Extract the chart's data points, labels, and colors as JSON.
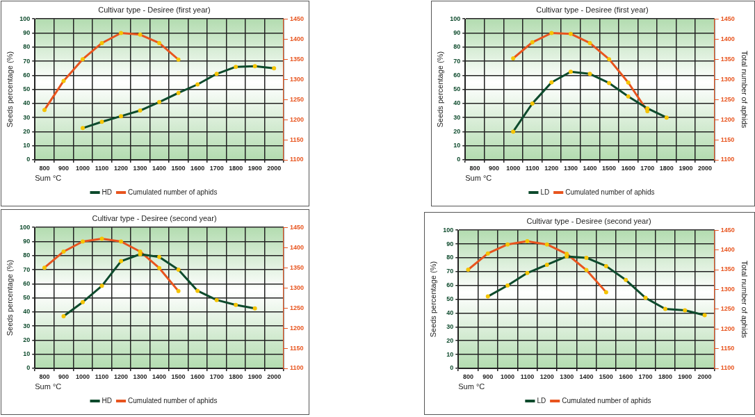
{
  "chart_data": [
    {
      "type": "line",
      "title": "Cultivar type - Desiree (first year)",
      "xlabel": "Sum °C",
      "ylabel": "Seeds percentage (%)",
      "categories": [
        "800",
        "900",
        "1000",
        "1100",
        "1200",
        "1300",
        "1400",
        "1500",
        "1600",
        "1700",
        "1800",
        "1900",
        "2000"
      ],
      "ylim": [
        0,
        100
      ],
      "yticks": [
        0,
        10,
        20,
        30,
        40,
        50,
        60,
        70,
        80,
        90,
        100
      ],
      "y2lim": [
        1100,
        1450
      ],
      "y2ticks": [
        1100,
        1150,
        1200,
        1250,
        1300,
        1350,
        1400,
        1450
      ],
      "grid": true,
      "legend": "bottom",
      "marker": "circle",
      "series": [
        {
          "name": "HD",
          "color": "#0d4a2c",
          "values": [
            null,
            null,
            22.5,
            27,
            31,
            35,
            41,
            47.5,
            53.5,
            61,
            66,
            66.5,
            65
          ]
        },
        {
          "name": "Cumulated number of aphids",
          "color": "#e8541e",
          "axis": "y2",
          "values": [
            1224,
            1296,
            1350,
            1390,
            1415,
            1411,
            1390,
            1349,
            null,
            null,
            null,
            null,
            null
          ]
        }
      ]
    },
    {
      "type": "line",
      "title": "Cultivar type - Desiree (first year)",
      "xlabel": "Sum °C",
      "ylabel": "Seeds percentage (%)",
      "y2label": "Total number of aphids",
      "categories": [
        "800",
        "900",
        "1000",
        "1100",
        "1200",
        "1300",
        "1400",
        "1500",
        "1600",
        "1700",
        "1800",
        "1900",
        "2000"
      ],
      "ylim": [
        0,
        100
      ],
      "yticks": [
        0,
        10,
        20,
        30,
        40,
        50,
        60,
        70,
        80,
        90,
        100
      ],
      "y2lim": [
        1100,
        1450
      ],
      "y2ticks": [
        1100,
        1150,
        1200,
        1250,
        1300,
        1350,
        1400,
        1450
      ],
      "grid": true,
      "legend": "bottom",
      "marker": "circle",
      "series": [
        {
          "name": "LD",
          "color": "#0d4a2c",
          "values": [
            null,
            null,
            20,
            40,
            55,
            62.5,
            61,
            54.5,
            45,
            36.5,
            30,
            null,
            null
          ]
        },
        {
          "name": "Cumulated number of aphids",
          "color": "#e8541e",
          "axis": "y2",
          "values": [
            null,
            null,
            1352,
            1392,
            1415,
            1413,
            1390,
            1350,
            1292,
            1221,
            null,
            null,
            null
          ]
        }
      ]
    },
    {
      "type": "line",
      "title": "Cultivar type - Desiree (second year)",
      "xlabel": "Sum °C",
      "ylabel": "Seeds percentage (%)",
      "categories": [
        "800",
        "900",
        "1000",
        "1100",
        "1200",
        "1300",
        "1400",
        "1500",
        "1600",
        "1700",
        "1800",
        "1900",
        "2000"
      ],
      "ylim": [
        0,
        100
      ],
      "yticks": [
        0,
        10,
        20,
        30,
        40,
        50,
        60,
        70,
        80,
        90,
        100
      ],
      "y2lim": [
        1100,
        1450
      ],
      "y2ticks": [
        1100,
        1150,
        1200,
        1250,
        1300,
        1350,
        1400,
        1450
      ],
      "grid": true,
      "legend": "bottom",
      "marker": "circle",
      "series": [
        {
          "name": "HD",
          "color": "#0d4a2c",
          "values": [
            null,
            37,
            47,
            58.5,
            76,
            81,
            79,
            70,
            55,
            48.5,
            45,
            42.5,
            null
          ]
        },
        {
          "name": "Cumulated number of aphids",
          "color": "#e8541e",
          "axis": "y2",
          "values": [
            1350,
            1390,
            1415,
            1422,
            1415,
            1390,
            1349,
            1292,
            null,
            null,
            null,
            null,
            null
          ]
        }
      ]
    },
    {
      "type": "line",
      "title": "Cultivar type - Desiree (second year)",
      "xlabel": "Sum °C",
      "ylabel": "Seeds percentage (%)",
      "y2label": "Total number of aphids",
      "categories": [
        "800",
        "900",
        "1000",
        "1100",
        "1200",
        "1300",
        "1400",
        "1500",
        "1600",
        "1700",
        "1800",
        "1900",
        "2000"
      ],
      "ylim": [
        0,
        100
      ],
      "yticks": [
        0,
        10,
        20,
        30,
        40,
        50,
        60,
        70,
        80,
        90,
        100
      ],
      "y2lim": [
        1100,
        1450
      ],
      "y2ticks": [
        1100,
        1150,
        1200,
        1250,
        1300,
        1350,
        1400,
        1450
      ],
      "grid": true,
      "legend": "bottom",
      "marker": "circle",
      "series": [
        {
          "name": "LD",
          "color": "#0d4a2c",
          "values": [
            null,
            52,
            60,
            69,
            75,
            81,
            80,
            74,
            64,
            51,
            43,
            42,
            38.5
          ]
        },
        {
          "name": "Cumulated number of aphids",
          "color": "#e8541e",
          "axis": "y2",
          "values": [
            1350,
            1391,
            1414,
            1422,
            1414,
            1390,
            1349,
            1293,
            null,
            null,
            null,
            null,
            null
          ]
        }
      ]
    }
  ]
}
